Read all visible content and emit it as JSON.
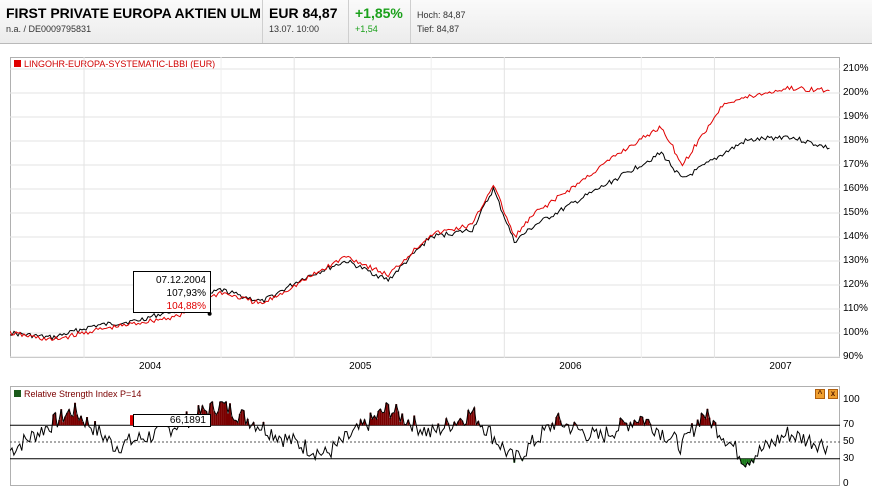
{
  "quote": {
    "name": "FIRST PRIVATE EUROPA AKTIEN ULM",
    "sub": "n.a.  /  DE0009795831",
    "price": "EUR 84,87",
    "time": "13.07.  10:00",
    "change_pct": "+1,85%",
    "change_abs": "+1,54",
    "high": "Hoch: 84,87",
    "low": "Tief: 84,87"
  },
  "main_chart": {
    "legend_label": "LINGOHR-EUROPA-SYSTEMATIC-LBBI (EUR)",
    "y_ticks": [
      "210%",
      "200%",
      "190%",
      "180%",
      "170%",
      "160%",
      "150%",
      "140%",
      "130%",
      "120%",
      "110%",
      "100%",
      "90%"
    ],
    "x_ticks": [
      "2004",
      "2005",
      "2006",
      "2007"
    ]
  },
  "tooltip": {
    "date": "07.12.2004",
    "fund_value": "107,93%",
    "benchmark_value": "104,88%"
  },
  "rsi": {
    "label": "Relative Strength Index P=14",
    "tooltip_value": "66,1891",
    "y_ticks": [
      "100",
      "70",
      "50",
      "30",
      "0"
    ],
    "btn_maximize": "^",
    "btn_close": "x"
  },
  "chart_data": [
    {
      "type": "line",
      "title": "",
      "ylabel": "",
      "ylim": [
        90,
        210
      ],
      "x": [
        2003.6,
        2003.8,
        2004.0,
        2004.2,
        2004.4,
        2004.6,
        2004.8,
        2005.0,
        2005.2,
        2005.4,
        2005.6,
        2005.8,
        2005.9,
        2006.0,
        2006.1,
        2006.3,
        2006.5,
        2006.7,
        2006.8,
        2007.0,
        2007.1,
        2007.3,
        2007.5
      ],
      "series": [
        {
          "name": "",
          "color": "#000000",
          "values": [
            100,
            98,
            103,
            105,
            110,
            118,
            113,
            123,
            130,
            122,
            140,
            143,
            160,
            138,
            145,
            155,
            165,
            175,
            164,
            175,
            180,
            182,
            177
          ]
        },
        {
          "name": "LINGOHR-EUROPA-SYSTEMATIC-LBBI (EUR)",
          "color": "#e00000",
          "values": [
            100,
            97,
            101,
            104,
            107,
            117,
            112,
            122,
            132,
            124,
            141,
            145,
            162,
            140,
            150,
            162,
            175,
            186,
            170,
            196,
            198,
            202,
            201
          ]
        }
      ]
    },
    {
      "type": "area",
      "title": "Relative Strength Index P=14",
      "ylim": [
        0,
        100
      ],
      "bands": [
        30,
        50,
        70
      ],
      "x": [
        2003.6,
        2003.9,
        2004.1,
        2004.3,
        2004.6,
        2004.9,
        2005.1,
        2005.4,
        2005.6,
        2005.8,
        2006.0,
        2006.2,
        2006.4,
        2006.6,
        2006.8,
        2006.9,
        2007.1,
        2007.3,
        2007.5
      ],
      "values": [
        40,
        88,
        45,
        60,
        95,
        55,
        35,
        90,
        60,
        85,
        28,
        75,
        55,
        80,
        45,
        85,
        28,
        60,
        45
      ]
    }
  ]
}
